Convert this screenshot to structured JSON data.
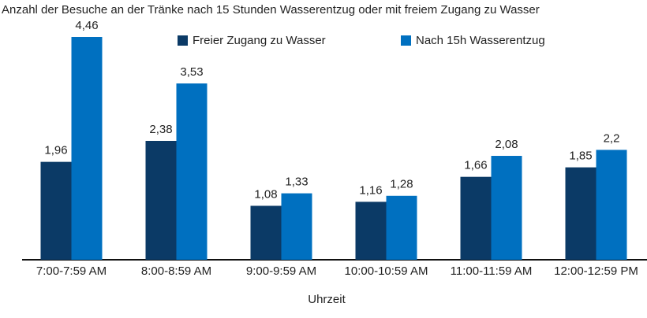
{
  "chart_data": {
    "type": "bar",
    "title": "Anzahl der Besuche an der Tränke nach 15 Stunden Wasserentzug oder mit freiem Zugang zu Wasser",
    "x_label": "Uhrzeit",
    "categories": [
      "7:00-7:59 AM",
      "8:00-8:59 AM",
      "9:00-9:59 AM",
      "10:00-10:59 AM",
      "11:00-11:59 AM",
      "12:00-12:59 PM"
    ],
    "series": [
      {
        "name": "Freier Zugang zu Wasser",
        "color": "#0b3a66",
        "values": [
          1.96,
          2.38,
          1.08,
          1.16,
          1.66,
          1.85
        ],
        "value_labels": [
          "1,96",
          "2,38",
          "1,08",
          "1,16",
          "1,66",
          "1,85"
        ]
      },
      {
        "name": "Nach 15h Wasserentzug",
        "color": "#0070c0",
        "values": [
          4.46,
          3.53,
          1.33,
          1.28,
          2.08,
          2.2
        ],
        "value_labels": [
          "4,46",
          "3,53",
          "1,33",
          "1,28",
          "2,08",
          "2,2"
        ]
      }
    ]
  }
}
